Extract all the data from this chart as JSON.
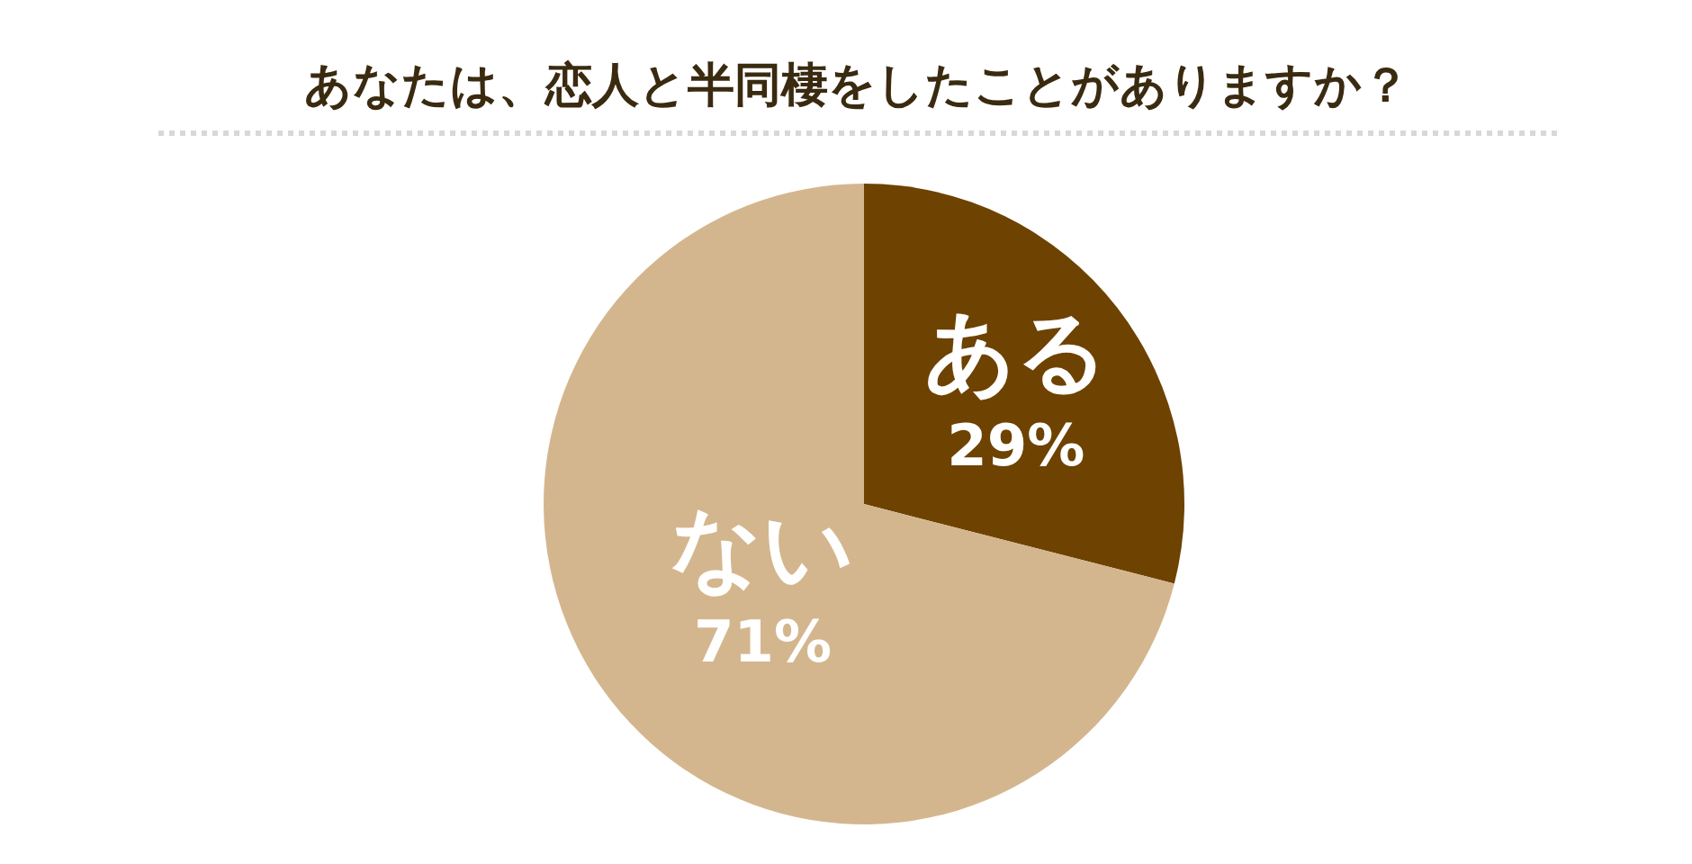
{
  "chart_data": {
    "type": "pie",
    "title": "あなたは、恋人と半同棲をしたことがありますか？",
    "categories": [
      "ある",
      "ない"
    ],
    "values": [
      29,
      71
    ],
    "colors": [
      "#6e4200",
      "#d4b68e"
    ],
    "value_labels": [
      "29%",
      "71%"
    ]
  }
}
